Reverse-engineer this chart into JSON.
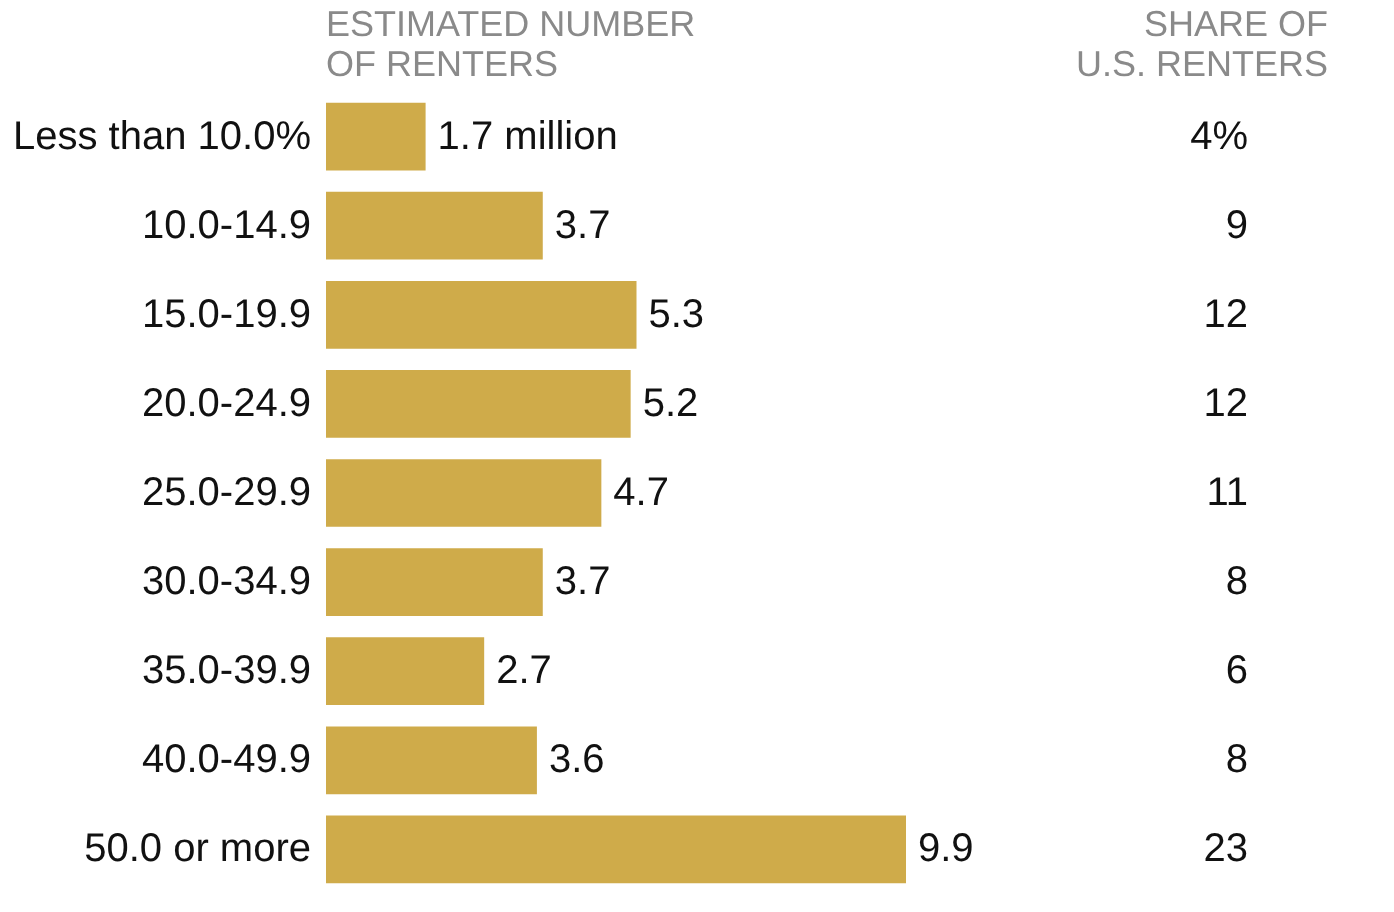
{
  "chart_data": [
    {
      "type": "bar",
      "orientation": "horizontal",
      "title": "ESTIMATED NUMBER OF RENTERS",
      "categories": [
        "Less than 10.0%",
        "10.0-14.9",
        "15.0-19.9",
        "20.0-24.9",
        "25.0-29.9",
        "30.0-34.9",
        "35.0-39.9",
        "40.0-49.9",
        "50.0 or more"
      ],
      "values": [
        1.7,
        3.7,
        5.3,
        5.2,
        4.7,
        3.7,
        2.7,
        3.6,
        9.9
      ],
      "color": "#cfab4a",
      "value_labels": [
        "1.7 million",
        "3.7",
        "5.3",
        "5.2",
        "4.7",
        "3.7",
        "2.7",
        "3.6",
        "9.9"
      ]
    },
    {
      "type": "other",
      "title": "SHARE OF U.S. RENTERS",
      "values": [
        4,
        9,
        12,
        12,
        11,
        8,
        6,
        8,
        23
      ],
      "value_labels": [
        "4%",
        "9",
        "12",
        "12",
        "11",
        "8",
        "6",
        "8",
        "23"
      ]
    }
  ]
}
